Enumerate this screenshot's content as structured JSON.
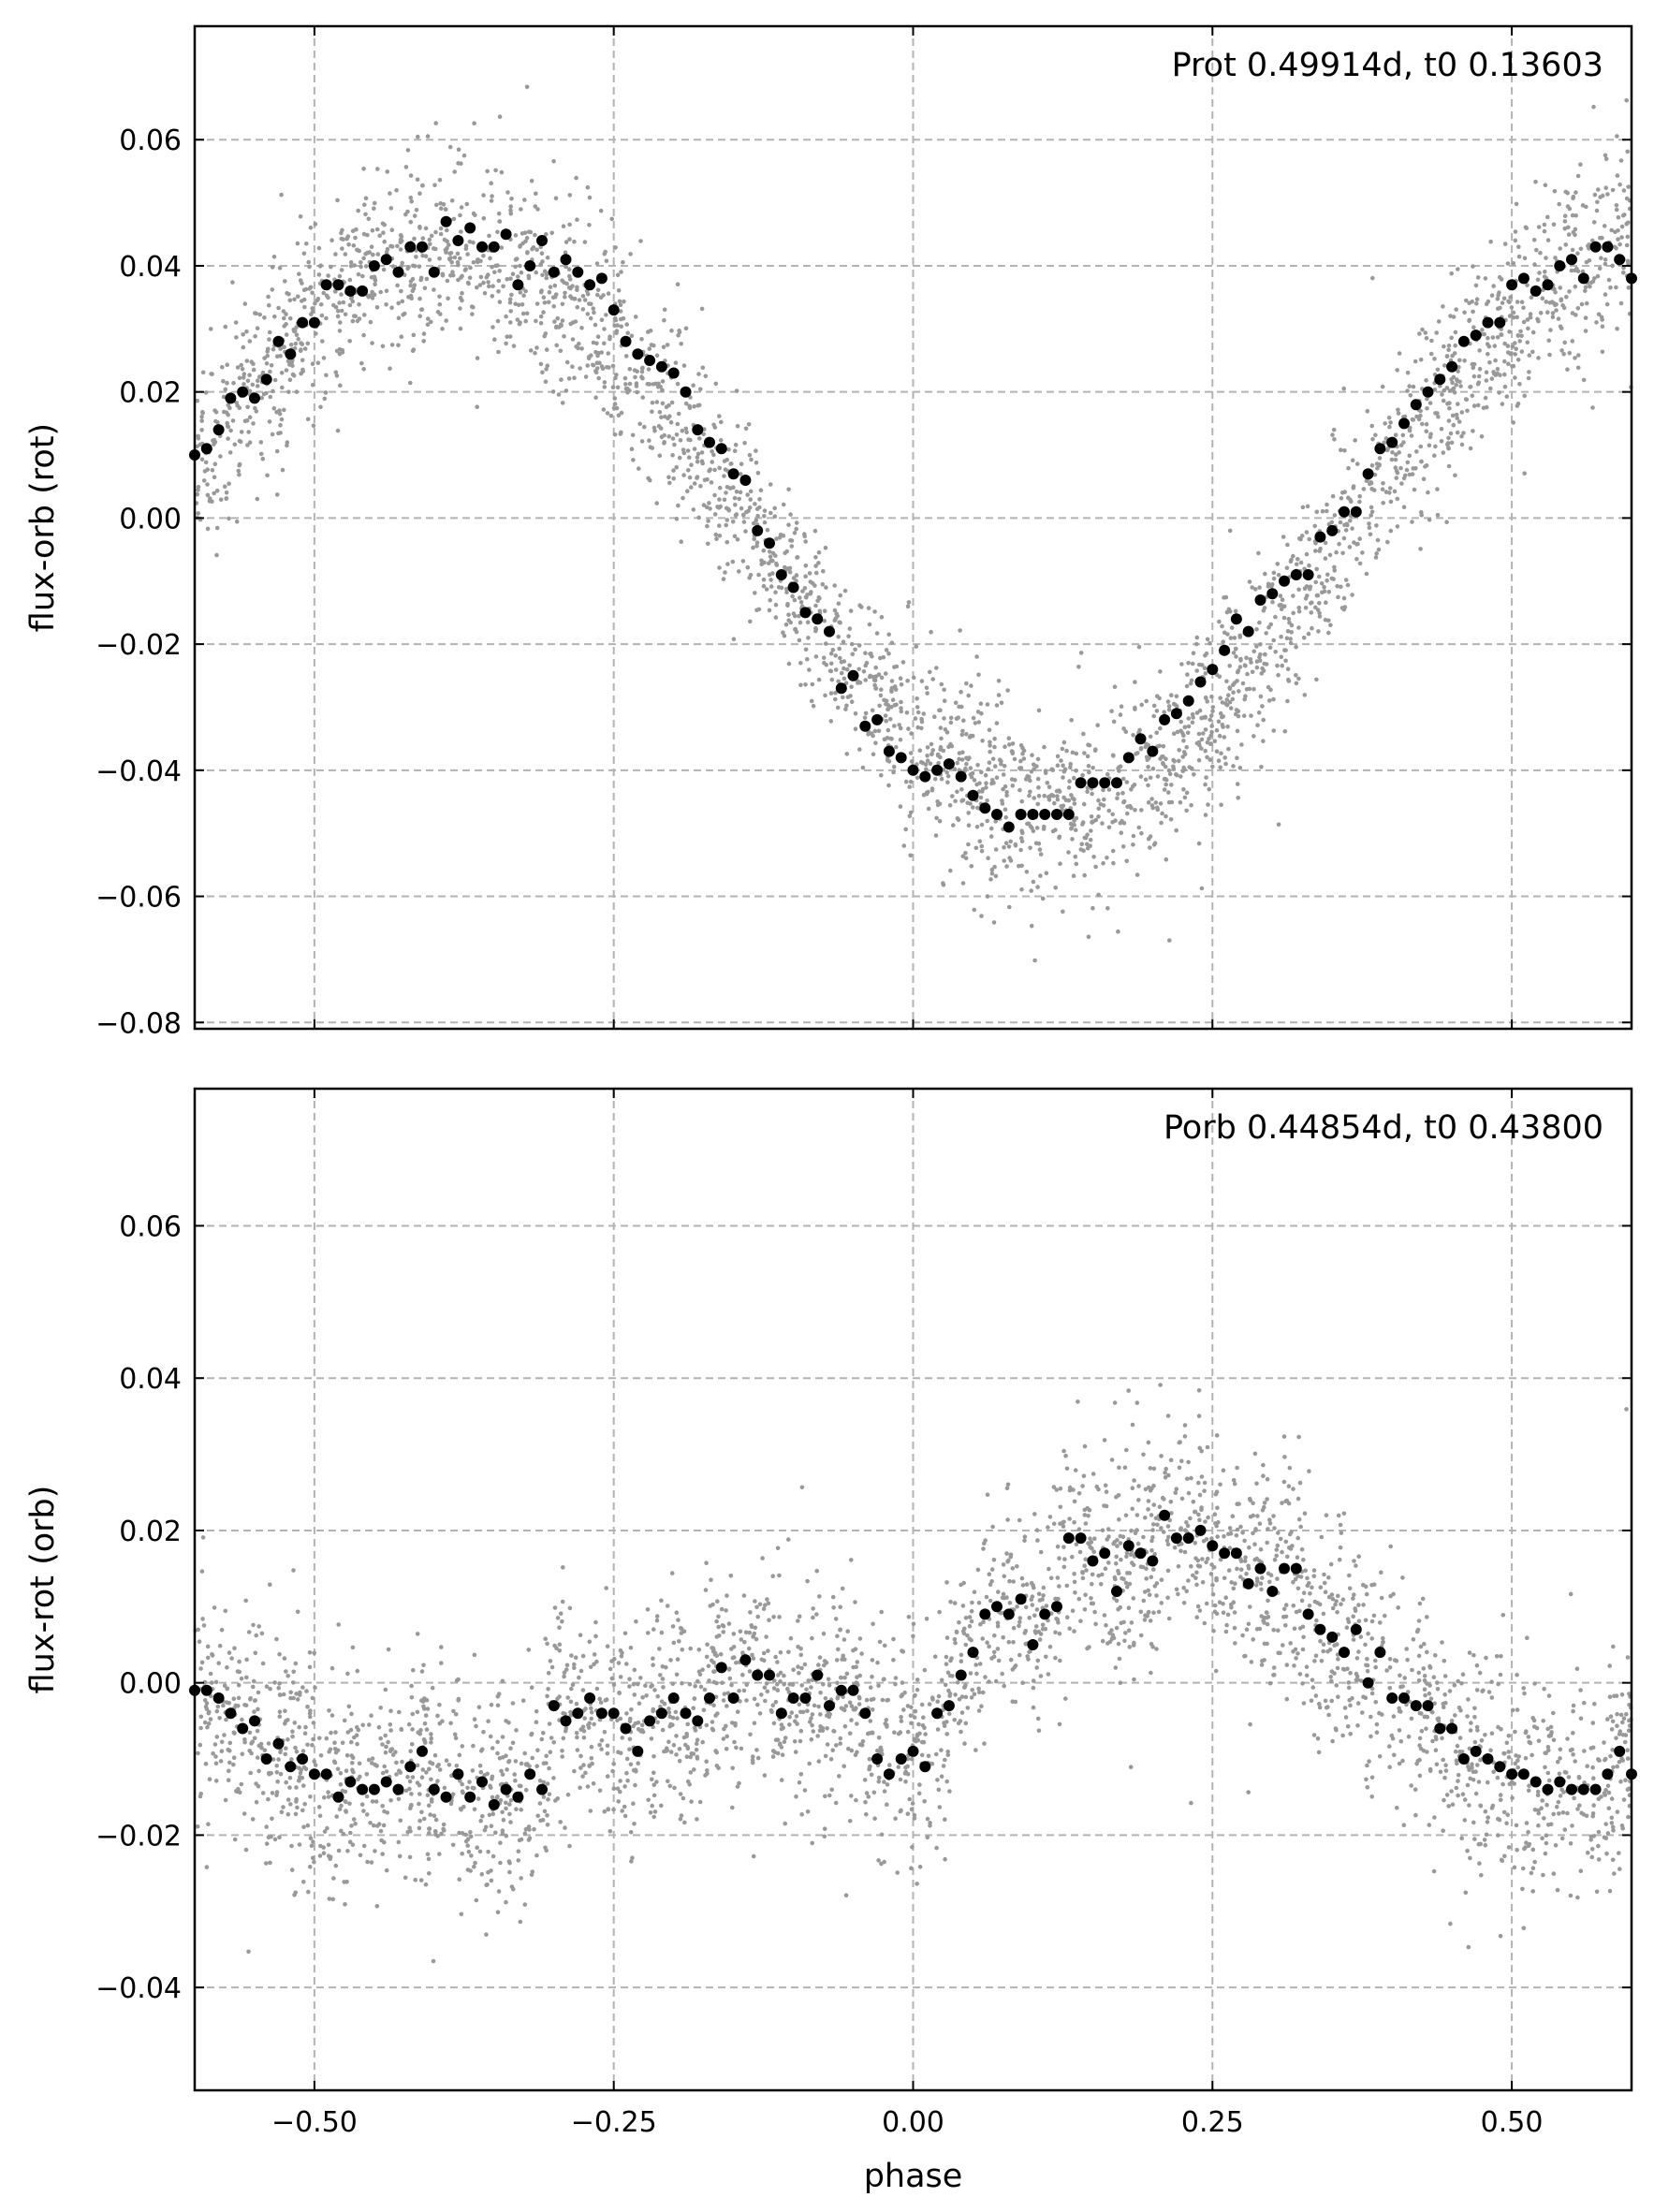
{
  "chart_data": [
    {
      "type": "scatter",
      "annotation": "Prot 0.49914d, t0 0.13603",
      "xlabel": "",
      "ylabel": "flux-orb (rot)",
      "xlim": [
        -0.6,
        0.6
      ],
      "ylim": [
        -0.081,
        0.078
      ],
      "xticks": [
        -0.5,
        -0.25,
        0.0,
        0.25,
        0.5
      ],
      "yticks": [
        -0.08,
        -0.06,
        -0.04,
        -0.02,
        0.0,
        0.02,
        0.04,
        0.06
      ],
      "ytick_labels": [
        "−0.08",
        "−0.06",
        "−0.04",
        "−0.02",
        "0.00",
        "0.02",
        "0.04",
        "0.06"
      ],
      "grid": true,
      "series": [
        {
          "role": "raw",
          "color": "#999999",
          "model": {
            "shape": "sinusoid",
            "period_phase": 1.0,
            "amplitude": 0.0445,
            "offset": -0.0013,
            "phase_of_minimum": 0.115,
            "scatter": 0.0075,
            "n_points": 3200
          }
        },
        {
          "role": "binned",
          "color": "#000000",
          "x": [
            -0.6,
            -0.59,
            -0.58,
            -0.57,
            -0.56,
            -0.55,
            -0.54,
            -0.53,
            -0.52,
            -0.51,
            -0.5,
            -0.49,
            -0.48,
            -0.47,
            -0.46,
            -0.45,
            -0.44,
            -0.43,
            -0.42,
            -0.41,
            -0.4,
            -0.39,
            -0.38,
            -0.37,
            -0.36,
            -0.35,
            -0.34,
            -0.33,
            -0.32,
            -0.31,
            -0.3,
            -0.29,
            -0.28,
            -0.27,
            -0.26,
            -0.25,
            -0.24,
            -0.23,
            -0.22,
            -0.21,
            -0.2,
            -0.19,
            -0.18,
            -0.17,
            -0.16,
            -0.15,
            -0.14,
            -0.13,
            -0.12,
            -0.11,
            -0.1,
            -0.09,
            -0.08,
            -0.07,
            -0.06,
            -0.05,
            -0.04,
            -0.03,
            -0.02,
            -0.01,
            0.0,
            0.01,
            0.02,
            0.03,
            0.04,
            0.05,
            0.06,
            0.07,
            0.08,
            0.09,
            0.1,
            0.11,
            0.12,
            0.13,
            0.14,
            0.15,
            0.16,
            0.17,
            0.18,
            0.19,
            0.2,
            0.21,
            0.22,
            0.23,
            0.24,
            0.25,
            0.26,
            0.27,
            0.28,
            0.29,
            0.3,
            0.31,
            0.32,
            0.33,
            0.34,
            0.35,
            0.36,
            0.37,
            0.38,
            0.39,
            0.4,
            0.41,
            0.42,
            0.43,
            0.44,
            0.45,
            0.46,
            0.47,
            0.48,
            0.49,
            0.5,
            0.51,
            0.52,
            0.53,
            0.54,
            0.55,
            0.56,
            0.57,
            0.58,
            0.59,
            0.6
          ],
          "y": [
            0.01,
            0.011,
            0.014,
            0.019,
            0.02,
            0.019,
            0.022,
            0.028,
            0.026,
            0.031,
            0.031,
            0.037,
            0.037,
            0.036,
            0.036,
            0.04,
            0.041,
            0.039,
            0.043,
            0.043,
            0.039,
            0.047,
            0.044,
            0.046,
            0.043,
            0.043,
            0.045,
            0.037,
            0.04,
            0.044,
            0.039,
            0.041,
            0.039,
            0.037,
            0.038,
            0.033,
            0.028,
            0.026,
            0.025,
            0.024,
            0.023,
            0.02,
            0.014,
            0.012,
            0.011,
            0.007,
            0.006,
            -0.002,
            -0.004,
            -0.009,
            -0.011,
            -0.015,
            -0.016,
            -0.018,
            -0.027,
            -0.025,
            -0.033,
            -0.032,
            -0.037,
            -0.038,
            -0.04,
            -0.041,
            -0.04,
            -0.039,
            -0.041,
            -0.044,
            -0.046,
            -0.047,
            -0.049,
            -0.047,
            -0.047,
            -0.047,
            -0.047,
            -0.047,
            -0.042,
            -0.042,
            -0.042,
            -0.042,
            -0.038,
            -0.035,
            -0.037,
            -0.032,
            -0.031,
            -0.029,
            -0.026,
            -0.024,
            -0.021,
            -0.016,
            -0.018,
            -0.013,
            -0.012,
            -0.01,
            -0.009,
            -0.009,
            -0.003,
            -0.002,
            0.001,
            0.001,
            0.007,
            0.011,
            0.012,
            0.015,
            0.018,
            0.02,
            0.022,
            0.024,
            0.028,
            0.029,
            0.031,
            0.031,
            0.037,
            0.038,
            0.036,
            0.037,
            0.04,
            0.041,
            0.038,
            0.043,
            0.043,
            0.041,
            0.038
          ]
        }
      ]
    },
    {
      "type": "scatter",
      "annotation": "Porb 0.44854d, t0 0.43800",
      "xlabel": "phase",
      "ylabel": "flux-rot (orb)",
      "xlim": [
        -0.6,
        0.6
      ],
      "ylim": [
        -0.0535,
        0.078
      ],
      "xticks": [
        -0.5,
        -0.25,
        0.0,
        0.25,
        0.5
      ],
      "xtick_labels": [
        "−0.50",
        "−0.25",
        "0.00",
        "0.25",
        "0.50"
      ],
      "yticks": [
        -0.04,
        -0.02,
        0.0,
        0.02,
        0.04,
        0.06
      ],
      "ytick_labels": [
        "−0.04",
        "−0.02",
        "0.00",
        "0.02",
        "0.04",
        "0.06"
      ],
      "grid": true,
      "series": [
        {
          "role": "raw",
          "color": "#999999",
          "model": {
            "shape": "follows-binned",
            "scatter": 0.0075,
            "n_points": 3200
          }
        },
        {
          "role": "binned",
          "color": "#000000",
          "x": [
            -0.6,
            -0.59,
            -0.58,
            -0.57,
            -0.56,
            -0.55,
            -0.54,
            -0.53,
            -0.52,
            -0.51,
            -0.5,
            -0.49,
            -0.48,
            -0.47,
            -0.46,
            -0.45,
            -0.44,
            -0.43,
            -0.42,
            -0.41,
            -0.4,
            -0.39,
            -0.38,
            -0.37,
            -0.36,
            -0.35,
            -0.34,
            -0.33,
            -0.32,
            -0.31,
            -0.3,
            -0.29,
            -0.28,
            -0.27,
            -0.26,
            -0.25,
            -0.24,
            -0.23,
            -0.22,
            -0.21,
            -0.2,
            -0.19,
            -0.18,
            -0.17,
            -0.16,
            -0.15,
            -0.14,
            -0.13,
            -0.12,
            -0.11,
            -0.1,
            -0.09,
            -0.08,
            -0.07,
            -0.06,
            -0.05,
            -0.04,
            -0.03,
            -0.02,
            -0.01,
            0.0,
            0.01,
            0.02,
            0.03,
            0.04,
            0.05,
            0.06,
            0.07,
            0.08,
            0.09,
            0.1,
            0.11,
            0.12,
            0.13,
            0.14,
            0.15,
            0.16,
            0.17,
            0.18,
            0.19,
            0.2,
            0.21,
            0.22,
            0.23,
            0.24,
            0.25,
            0.26,
            0.27,
            0.28,
            0.29,
            0.3,
            0.31,
            0.32,
            0.33,
            0.34,
            0.35,
            0.36,
            0.37,
            0.38,
            0.39,
            0.4,
            0.41,
            0.42,
            0.43,
            0.44,
            0.45,
            0.46,
            0.47,
            0.48,
            0.49,
            0.5,
            0.51,
            0.52,
            0.53,
            0.54,
            0.55,
            0.56,
            0.57,
            0.58,
            0.59,
            0.6
          ],
          "y": [
            -0.001,
            -0.001,
            -0.002,
            -0.004,
            -0.006,
            -0.005,
            -0.01,
            -0.008,
            -0.011,
            -0.01,
            -0.012,
            -0.012,
            -0.015,
            -0.013,
            -0.014,
            -0.014,
            -0.013,
            -0.014,
            -0.011,
            -0.009,
            -0.014,
            -0.015,
            -0.012,
            -0.015,
            -0.013,
            -0.016,
            -0.014,
            -0.015,
            -0.012,
            -0.014,
            -0.003,
            -0.005,
            -0.004,
            -0.002,
            -0.004,
            -0.004,
            -0.006,
            -0.009,
            -0.005,
            -0.004,
            -0.002,
            -0.004,
            -0.005,
            -0.002,
            0.002,
            -0.002,
            0.003,
            0.001,
            0.001,
            -0.004,
            -0.002,
            -0.002,
            0.001,
            -0.003,
            -0.001,
            -0.001,
            -0.004,
            -0.01,
            -0.012,
            -0.01,
            -0.009,
            -0.011,
            -0.004,
            -0.003,
            0.001,
            0.004,
            0.009,
            0.01,
            0.009,
            0.011,
            0.005,
            0.009,
            0.01,
            0.019,
            0.019,
            0.016,
            0.017,
            0.012,
            0.018,
            0.017,
            0.016,
            0.022,
            0.019,
            0.019,
            0.02,
            0.018,
            0.017,
            0.017,
            0.013,
            0.015,
            0.012,
            0.015,
            0.015,
            0.009,
            0.007,
            0.006,
            0.004,
            0.007,
            0.0,
            0.004,
            -0.002,
            -0.002,
            -0.003,
            -0.003,
            -0.006,
            -0.006,
            -0.01,
            -0.009,
            -0.01,
            -0.011,
            -0.012,
            -0.012,
            -0.013,
            -0.014,
            -0.013,
            -0.014,
            -0.014,
            -0.014,
            -0.012,
            -0.009,
            -0.012
          ]
        }
      ]
    }
  ]
}
